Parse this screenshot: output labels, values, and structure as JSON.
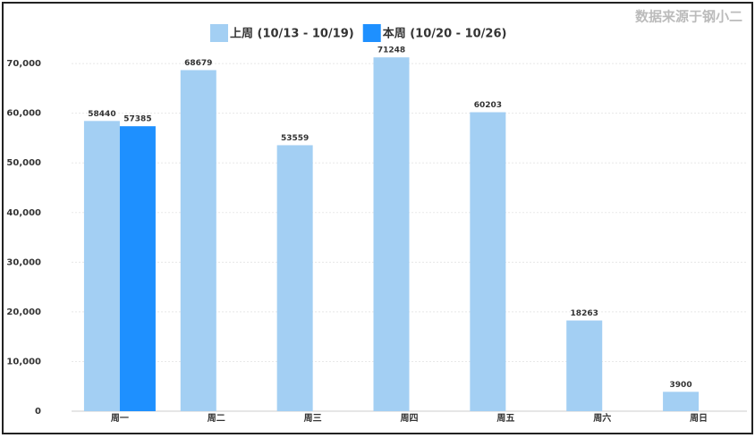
{
  "chart_data": {
    "type": "bar",
    "source": "数据来源于钢小二",
    "categories": [
      "周一",
      "周二",
      "周三",
      "周四",
      "周五",
      "周六",
      "周日"
    ],
    "series": [
      {
        "name": "上周 (10/13 - 10/19)",
        "color": "#a3cff3",
        "values": [
          58440,
          68679,
          53559,
          71248,
          60203,
          18263,
          3900
        ]
      },
      {
        "name": "本周 (10/20 - 10/26)",
        "color": "#1e90ff",
        "values": [
          57385,
          null,
          null,
          null,
          null,
          null,
          null
        ]
      }
    ],
    "ylim": [
      0,
      72000
    ],
    "yticks": [
      {
        "value": 0,
        "label": "0"
      },
      {
        "value": 10000,
        "label": "10,000"
      },
      {
        "value": 20000,
        "label": "20,000"
      },
      {
        "value": 30000,
        "label": "30,000"
      },
      {
        "value": 40000,
        "label": "40,000"
      },
      {
        "value": 50000,
        "label": "50,000"
      },
      {
        "value": 60000,
        "label": "60,000"
      },
      {
        "value": 70000,
        "label": "70,000"
      }
    ],
    "grid": true,
    "legend": "top"
  }
}
